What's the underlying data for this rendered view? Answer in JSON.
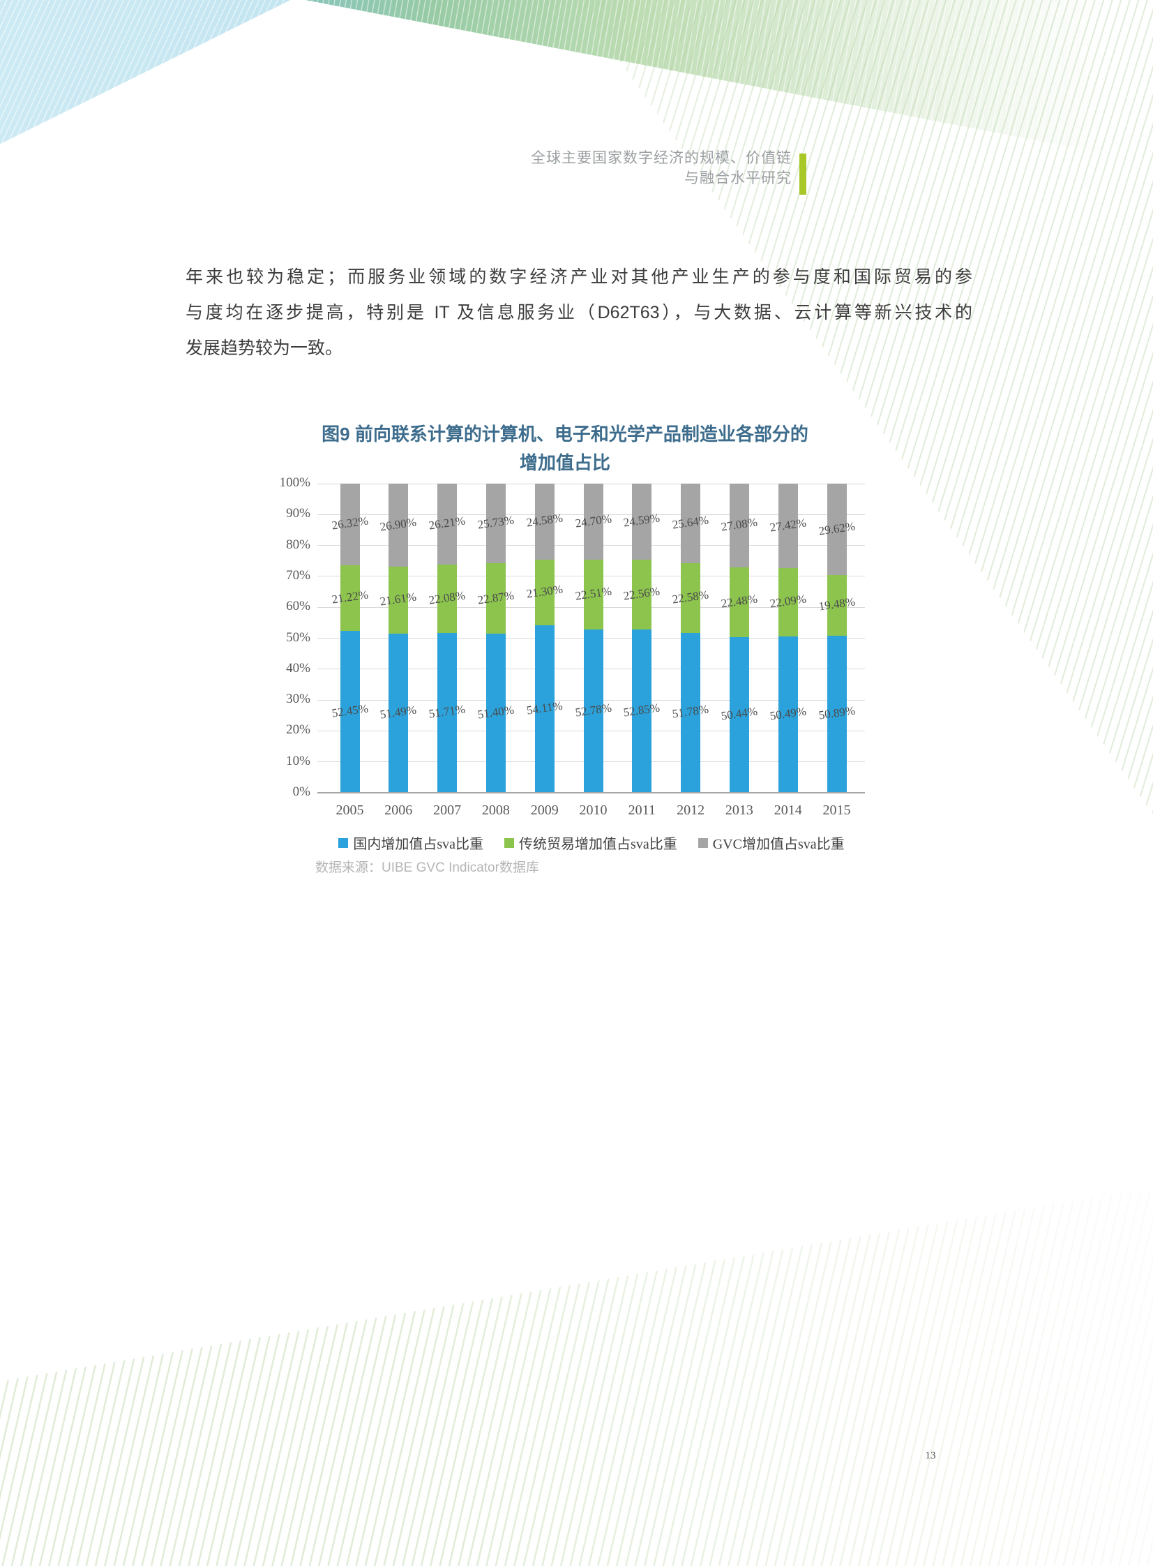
{
  "header": {
    "line1": "全球主要国家数字经济的规模、价值链",
    "line2": "与融合水平研究"
  },
  "paragraph": {
    "lines": [
      "年来也较为稳定；而服务业领域的数字经济产业对其他产业生产的参与度和国际贸易的参",
      "与度均在逐步提高，特别是 IT 及信息服务业（D62T63），与大数据、云计算等新兴技术的",
      "发展趋势较为一致。"
    ]
  },
  "chart": {
    "title_line1": "图9  前向联系计算的计算机、电子和光学产品制造业各部分的",
    "title_line2": "增加值占比",
    "source": "数据来源：UIBE GVC Indicator数据库"
  },
  "chart_data": {
    "type": "bar",
    "stacked": true,
    "title": "图9 前向联系计算的计算机、电子和光学产品制造业各部分的增加值占比",
    "categories": [
      "2005",
      "2006",
      "2007",
      "2008",
      "2009",
      "2010",
      "2011",
      "2012",
      "2013",
      "2014",
      "2015"
    ],
    "series": [
      {
        "name": "国内增加值占sva比重",
        "color": "#2BA2DB",
        "values": [
          52.45,
          51.49,
          51.71,
          51.4,
          54.11,
          52.78,
          52.85,
          51.78,
          50.44,
          50.49,
          50.89
        ]
      },
      {
        "name": "传统贸易增加值占sva比重",
        "color": "#8CC44E",
        "values": [
          21.22,
          21.61,
          22.08,
          22.87,
          21.3,
          22.51,
          22.56,
          22.58,
          22.48,
          22.09,
          19.48
        ]
      },
      {
        "name": "GVC增加值占sva比重",
        "color": "#A5A5A5",
        "values": [
          26.32,
          26.9,
          26.21,
          25.73,
          24.58,
          24.7,
          24.59,
          25.64,
          27.08,
          27.42,
          29.62
        ]
      }
    ],
    "ylim": [
      0,
      100
    ],
    "yticks": [
      "0%",
      "10%",
      "20%",
      "30%",
      "40%",
      "50%",
      "60%",
      "70%",
      "80%",
      "90%",
      "100%"
    ],
    "value_label_format": "0.00%",
    "grid": true,
    "legend_position": "bottom"
  },
  "footer": {
    "page_number": "13"
  },
  "colors": {
    "accent_bar": "#A7C827",
    "title": "#3D6C8C",
    "axis_text": "#595959",
    "value_label": "#4b4b4b",
    "gridline": "#D9D9D9",
    "axis_line": "#A6A6A6"
  }
}
